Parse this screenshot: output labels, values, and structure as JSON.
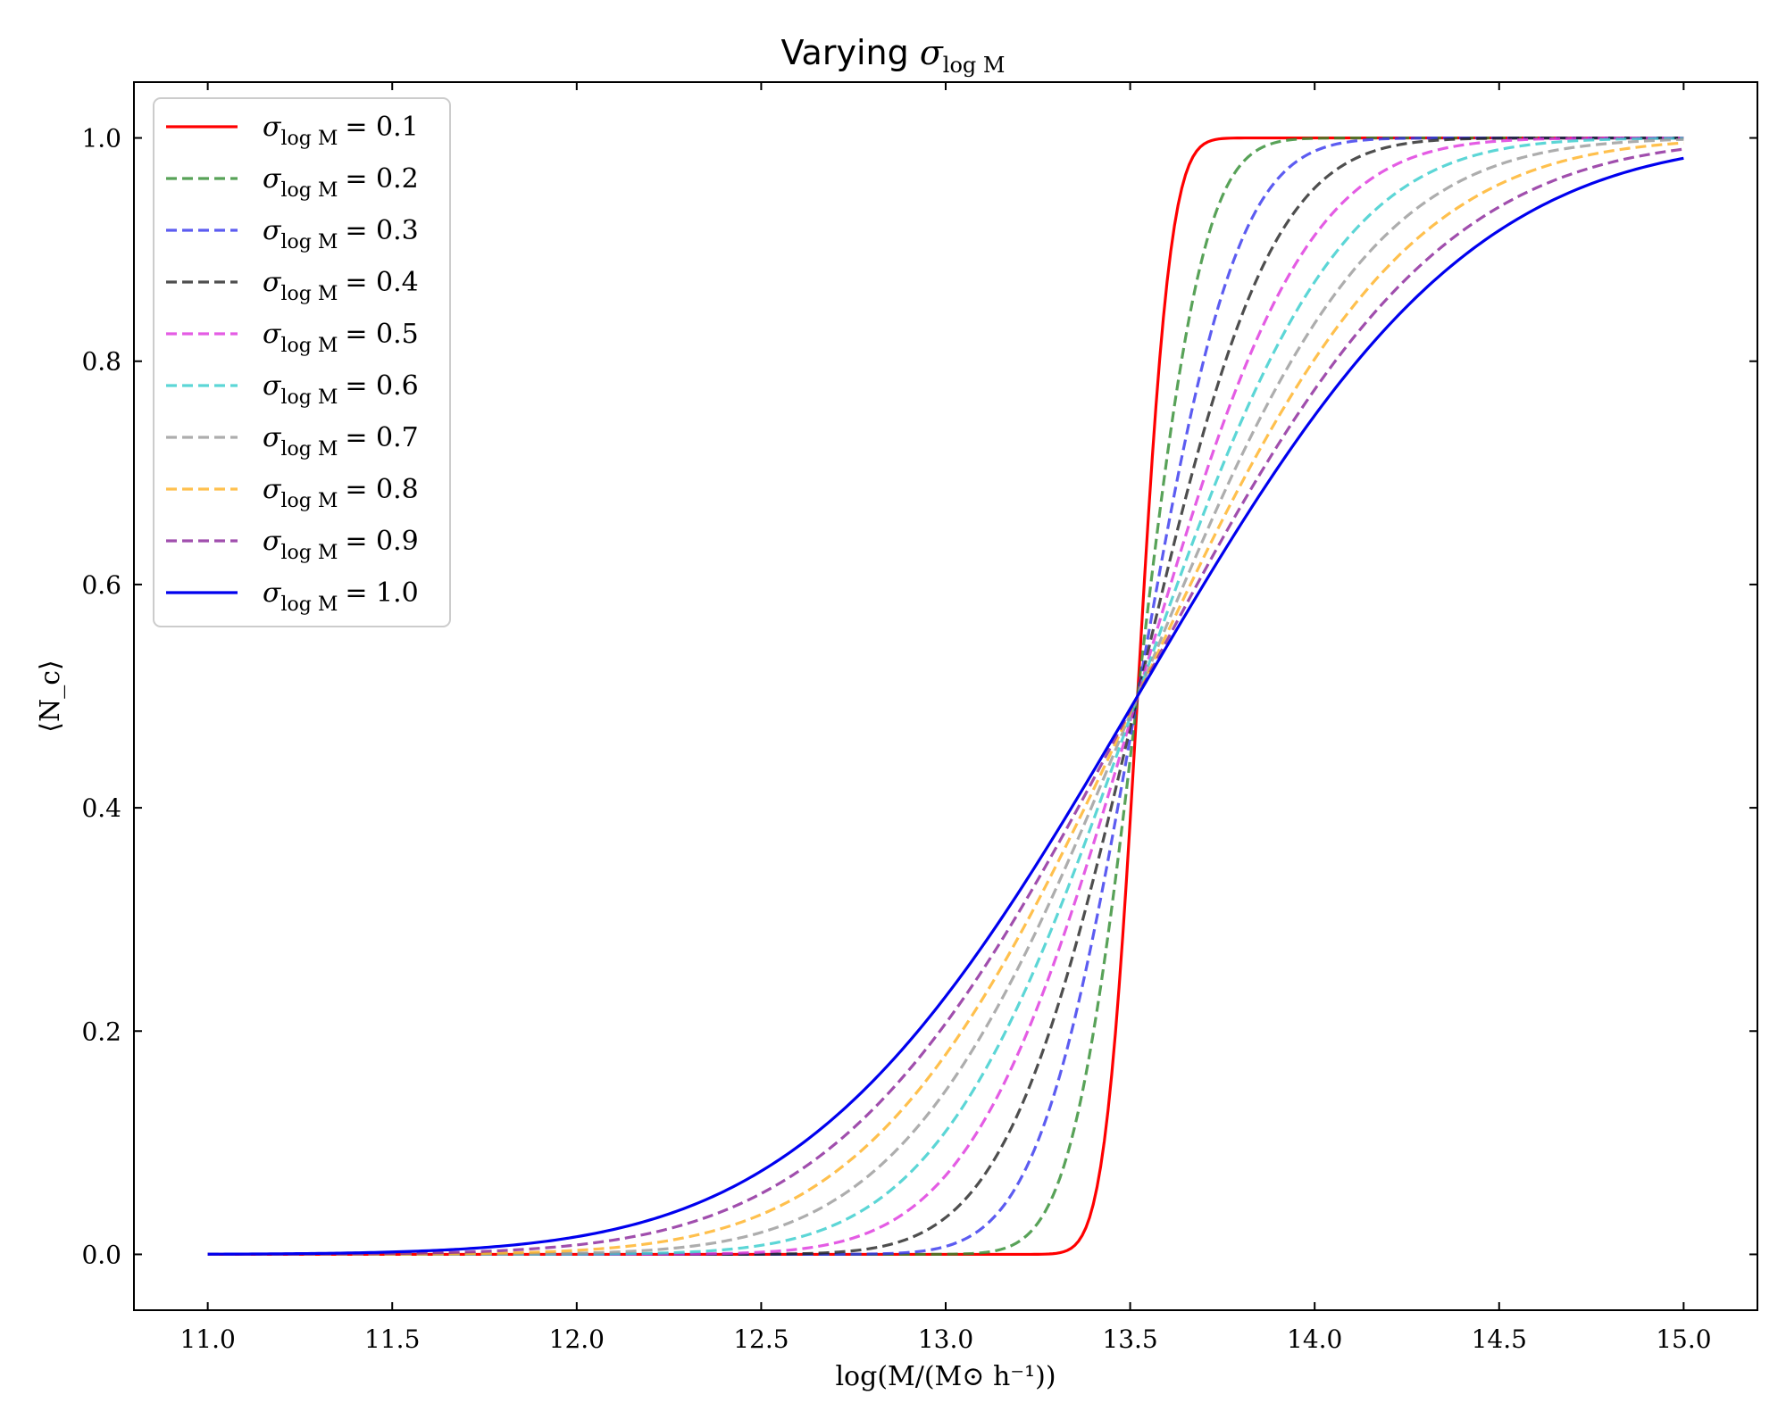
{
  "chart_data": {
    "type": "line",
    "title": "Varying σ_{log M}",
    "title_parts": {
      "text": "Varying ",
      "symbol": "σ",
      "subscript": "log M"
    },
    "xlabel": "log(M/(M⊙ h⁻¹))",
    "ylabel": "⟨N_c⟩",
    "xlim": [
      10.8,
      15.2
    ],
    "ylim": [
      -0.05,
      1.05
    ],
    "xticks": [
      "11.0",
      "11.5",
      "12.0",
      "12.5",
      "13.0",
      "13.5",
      "14.0",
      "14.5",
      "15.0"
    ],
    "yticks": [
      "0.0",
      "0.2",
      "0.4",
      "0.6",
      "0.8",
      "1.0"
    ],
    "x_range": [
      11.0,
      15.0
    ],
    "model": "0.5*(1+erf((x - log_Mmin)/sigma))",
    "log_Mmin": 13.52,
    "legend_position": "upper-left",
    "grid": false,
    "series": [
      {
        "name": "σ_{log M} = 0.1",
        "label": "= 0.1",
        "sigma": 0.1,
        "color": "#ff0000",
        "dash": "solid"
      },
      {
        "name": "σ_{log M} = 0.2",
        "label": "= 0.2",
        "sigma": 0.2,
        "color": "#2e8b2e",
        "dash": "dashed"
      },
      {
        "name": "σ_{log M} = 0.3",
        "label": "= 0.3",
        "sigma": 0.3,
        "color": "#3333ee",
        "dash": "dashed"
      },
      {
        "name": "σ_{log M} = 0.4",
        "label": "= 0.4",
        "sigma": 0.4,
        "color": "#222222",
        "dash": "dashed"
      },
      {
        "name": "σ_{log M} = 0.5",
        "label": "= 0.5",
        "sigma": 0.5,
        "color": "#dd33dd",
        "dash": "dashed"
      },
      {
        "name": "σ_{log M} = 0.6",
        "label": "= 0.6",
        "sigma": 0.6,
        "color": "#33cccc",
        "dash": "dashed"
      },
      {
        "name": "σ_{log M} = 0.7",
        "label": "= 0.7",
        "sigma": 0.7,
        "color": "#999999",
        "dash": "dashed"
      },
      {
        "name": "σ_{log M} = 0.8",
        "label": "= 0.8",
        "sigma": 0.8,
        "color": "#ffb020",
        "dash": "dashed"
      },
      {
        "name": "σ_{log M} = 0.9",
        "label": "= 0.9",
        "sigma": 0.9,
        "color": "#882299",
        "dash": "dashed"
      },
      {
        "name": "σ_{log M} = 1.0",
        "label": "= 1.0",
        "sigma": 1.0,
        "color": "#0000ee",
        "dash": "solid"
      }
    ]
  }
}
